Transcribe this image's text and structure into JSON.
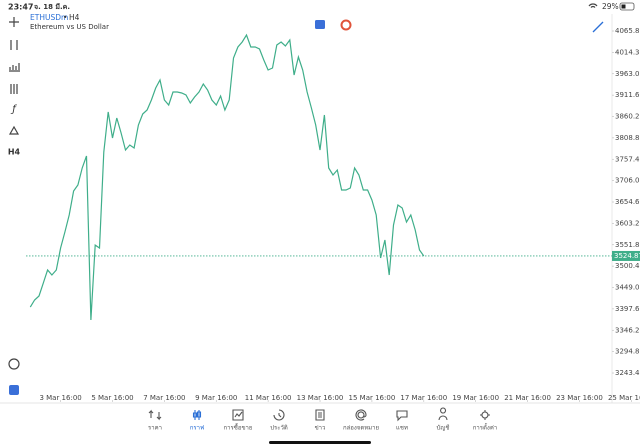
{
  "status_bar": {
    "time": "23:47",
    "date": "จ. 18 มี.ค.",
    "battery": "29%"
  },
  "chart_data": {
    "type": "line",
    "symbol": "ETHUSDm",
    "title_separator": "•",
    "timeframe": "H4",
    "subtitle": "Ethereum vs US Dollar",
    "color": "#3fae8a",
    "values": [
      3402.0,
      3418.9,
      3428.5,
      3459.7,
      3491.0,
      3479.0,
      3491.0,
      3543.9,
      3582.4,
      3623.3,
      3681.0,
      3695.4,
      3736.3,
      3765.2,
      3370.8,
      3551.1,
      3543.9,
      3774.8,
      3871.0,
      3808.5,
      3856.6,
      3820.5,
      3779.6,
      3791.6,
      3784.4,
      3839.7,
      3866.2,
      3875.8,
      3899.9,
      3928.7,
      3948.0,
      3899.9,
      3887.8,
      3919.1,
      3919.1,
      3916.7,
      3911.9,
      3892.6,
      3907.1,
      3919.1,
      3938.3,
      3923.9,
      3899.9,
      3887.8,
      3909.5,
      3875.8,
      3899.9,
      4000.9,
      4027.3,
      4039.3,
      4056.2,
      4027.3,
      4027.3,
      4022.5,
      3996.1,
      3972.0,
      3976.8,
      4032.1,
      4039.3,
      4029.7,
      4044.2,
      3960.0,
      4003.3,
      3972.0,
      3919.1,
      3880.6,
      3839.7,
      3779.6,
      3863.8,
      3736.3,
      3719.5,
      3731.5,
      3683.4,
      3683.4,
      3688.2,
      3736.3,
      3719.5,
      3683.4,
      3683.4,
      3659.4,
      3623.3,
      3519.9,
      3563.2,
      3479.0,
      3599.2,
      3647.3,
      3640.1,
      3606.4,
      3623.3,
      3587.2,
      3539.1,
      3524.87
    ],
    "current_price": 3524.87,
    "xlim": [
      -1,
      141
    ],
    "xticks": [
      {
        "value": 7,
        "label": "3 Mar 16:00"
      },
      {
        "value": 19,
        "label": "5 Mar 16:00"
      },
      {
        "value": 31,
        "label": "7 Mar 16:00"
      },
      {
        "value": 43,
        "label": "9 Mar 16:00"
      },
      {
        "value": 55,
        "label": "11 Mar 16:00"
      },
      {
        "value": 67,
        "label": "13 Mar 16:00"
      },
      {
        "value": 79,
        "label": "15 Mar 16:00"
      },
      {
        "value": 91,
        "label": "17 Mar 16:00"
      },
      {
        "value": 103,
        "label": "19 Mar 16:00"
      },
      {
        "value": 115,
        "label": "21 Mar 16:00"
      },
      {
        "value": 127,
        "label": "23 Mar 16:00"
      },
      {
        "value": 139,
        "label": "25 Mar 16:00"
      }
    ],
    "ylim": [
      3178.5,
      4106.7
    ],
    "yticks": [
      {
        "value": 4065.8,
        "label": "4065.80"
      },
      {
        "value": 4014.3,
        "label": "4014.30"
      },
      {
        "value": 3963.0,
        "label": "3963.00"
      },
      {
        "value": 3911.6,
        "label": "3911.60"
      },
      {
        "value": 3860.2,
        "label": "3860.20"
      },
      {
        "value": 3808.8,
        "label": "3808.80"
      },
      {
        "value": 3757.4,
        "label": "3757.40"
      },
      {
        "value": 3706.0,
        "label": "3706.00"
      },
      {
        "value": 3654.6,
        "label": "3654.60"
      },
      {
        "value": 3603.2,
        "label": "3603.20"
      },
      {
        "value": 3551.8,
        "label": "3551.80"
      },
      {
        "value": 3500.4,
        "label": "3500.40"
      },
      {
        "value": 3449.0,
        "label": "3449.00"
      },
      {
        "value": 3397.6,
        "label": "3397.60"
      },
      {
        "value": 3346.2,
        "label": "3346.20"
      },
      {
        "value": 3294.8,
        "label": "3294.80"
      },
      {
        "value": 3243.4,
        "label": "3243.40"
      }
    ]
  },
  "nav": {
    "active": 1,
    "items": [
      {
        "label": "ราคา"
      },
      {
        "label": "กราฟ"
      },
      {
        "label": "การซื้อขาย"
      },
      {
        "label": "ประวัติ"
      },
      {
        "label": "ข่าว"
      },
      {
        "label": "กล่องจดหมาย"
      },
      {
        "label": "แชท"
      },
      {
        "label": "บัญชี"
      },
      {
        "label": "การตั้งค่า"
      }
    ]
  }
}
